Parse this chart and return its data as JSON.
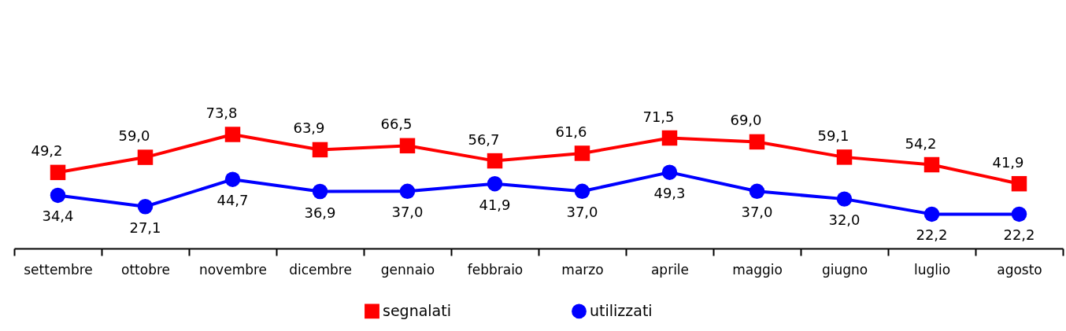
{
  "chart_data": {
    "type": "line",
    "categories": [
      "settembre",
      "ottobre",
      "novembre",
      "dicembre",
      "gennaio",
      "febbraio",
      "marzo",
      "aprile",
      "maggio",
      "giugno",
      "luglio",
      "agosto"
    ],
    "series": [
      {
        "name": "segnalati",
        "color": "#ff0000",
        "marker": "square",
        "values": [
          49.2,
          59.0,
          73.8,
          63.9,
          66.5,
          56.7,
          61.6,
          71.5,
          69.0,
          59.1,
          54.2,
          41.9
        ],
        "value_labels": [
          "49,2",
          "59,0",
          "73,8",
          "63,9",
          "66,5",
          "56,7",
          "61,6",
          "71,5",
          "69,0",
          "59,1",
          "54,2",
          "41,9"
        ]
      },
      {
        "name": "utilizzati",
        "color": "#0000ff",
        "marker": "circle",
        "values": [
          34.4,
          27.1,
          44.7,
          36.9,
          37.0,
          41.9,
          37.0,
          49.3,
          37.0,
          32.0,
          22.2,
          22.2
        ],
        "value_labels": [
          "34,4",
          "27,1",
          "44,7",
          "36,9",
          "37,0",
          "41,9",
          "37,0",
          "49,3",
          "37,0",
          "32,0",
          "22,2",
          "22,2"
        ]
      }
    ],
    "legend": "bottom",
    "grid": false
  }
}
